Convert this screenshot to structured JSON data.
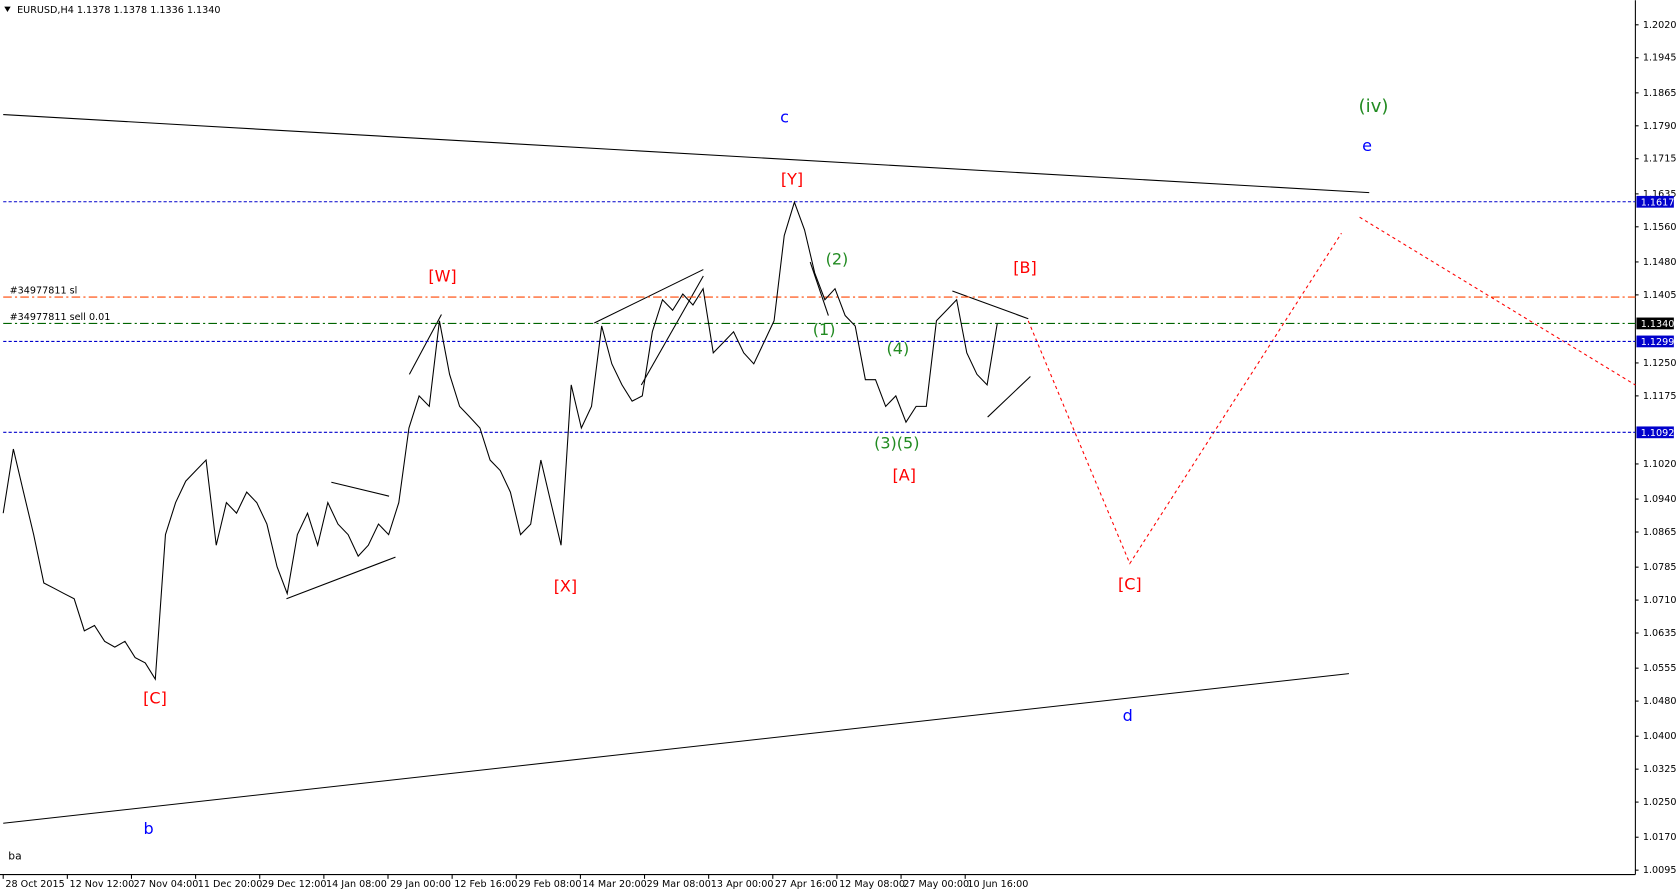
{
  "chart_data": {
    "type": "line",
    "title": "EURUSD,H4  1.1378 1.1378 1.1336 1.1340",
    "xtick_labels": [
      "28 Oct 2015",
      "12 Nov 12:00",
      "27 Nov 04:00",
      "11 Dec 20:00",
      "29 Dec 12:00",
      "14 Jan 08:00",
      "29 Jan 00:00",
      "12 Feb 16:00",
      "29 Feb 08:00",
      "14 Mar 20:00",
      "29 Mar 08:00",
      "13 Apr 00:00",
      "27 Apr 16:00",
      "12 May 08:00",
      "27 May 00:00",
      "10 Jun 16:00"
    ],
    "series": [
      {
        "color": "#000000",
        "values": [
          1.0908,
          1.1054,
          1.0956,
          1.0859,
          1.0749,
          1.0737,
          1.0725,
          1.0713,
          1.064,
          1.0652,
          1.0616,
          1.0603,
          1.0616,
          1.0579,
          1.0567,
          1.053,
          1.0859,
          1.0932,
          1.0981,
          1.1005,
          1.1029,
          1.0835,
          1.0932,
          1.0908,
          1.0956,
          1.0932,
          1.0883,
          1.0786,
          1.0725,
          1.0859,
          1.0908,
          1.0835,
          1.0932,
          1.0883,
          1.0859,
          1.081,
          1.0835,
          1.0883,
          1.0859,
          1.0932,
          1.1102,
          1.1175,
          1.1151,
          1.1346,
          1.1224,
          1.1151,
          1.1127,
          1.1102,
          1.1029,
          1.1005,
          1.0956,
          1.0859,
          1.0883,
          1.1029,
          1.0932,
          1.0835,
          1.12,
          1.1102,
          1.1151,
          1.1334,
          1.1248,
          1.12,
          1.1163,
          1.1175,
          1.1321,
          1.1394,
          1.137,
          1.1407,
          1.1382,
          1.1419,
          1.1273,
          1.1297,
          1.1321,
          1.1273,
          1.1248,
          1.1297,
          1.1346,
          1.154,
          1.1616,
          1.1553,
          1.1455,
          1.1394,
          1.1419,
          1.1358,
          1.1334,
          1.1212,
          1.1212,
          1.1151,
          1.1175,
          1.1115,
          1.1151,
          1.1151,
          1.1346,
          1.137,
          1.1394,
          1.1273,
          1.1224,
          1.12,
          1.134
        ]
      }
    ],
    "ylim": [
      1.0085,
      1.2076
    ],
    "yticks": [
      {
        "value": 1.0095,
        "label": "1.0095"
      },
      {
        "value": 1.017,
        "label": "1.0170"
      },
      {
        "value": 1.025,
        "label": "1.0250"
      },
      {
        "value": 1.0325,
        "label": "1.0325"
      },
      {
        "value": 1.04,
        "label": "1.0400"
      },
      {
        "value": 1.048,
        "label": "1.0480"
      },
      {
        "value": 1.0555,
        "label": "1.0555"
      },
      {
        "value": 1.0635,
        "label": "1.0635"
      },
      {
        "value": 1.071,
        "label": "1.0710"
      },
      {
        "value": 1.0785,
        "label": "1.0785"
      },
      {
        "value": 1.0865,
        "label": "1.0865"
      },
      {
        "value": 1.094,
        "label": "1.0940"
      },
      {
        "value": 1.102,
        "label": "1.1020"
      },
      {
        "value": 1.1175,
        "label": "1.1175"
      },
      {
        "value": 1.125,
        "label": "1.1250"
      },
      {
        "value": 1.1405,
        "label": "1.1405"
      },
      {
        "value": 1.148,
        "label": "1.1480"
      },
      {
        "value": 1.156,
        "label": "1.1560"
      },
      {
        "value": 1.1635,
        "label": "1.1635"
      },
      {
        "value": 1.1715,
        "label": "1.1715"
      },
      {
        "value": 1.179,
        "label": "1.1790"
      },
      {
        "value": 1.1865,
        "label": "1.1865"
      },
      {
        "value": 1.1945,
        "label": "1.1945"
      },
      {
        "value": 1.202,
        "label": "1.2020"
      }
    ],
    "hlines": [
      {
        "value": 1.1617,
        "label": "1.1617",
        "color": "#0000cc",
        "dash": "dotted",
        "box": "#0000cc"
      },
      {
        "value": 1.14,
        "color": "#ff4500",
        "dash": "dashdot",
        "text": "#34977811 sl"
      },
      {
        "value": 1.134,
        "label": "1.1340",
        "color": "#006400",
        "dash": "dashdot",
        "text": "#34977811 sell 0.01",
        "box": "#000000"
      },
      {
        "value": 1.1299,
        "label": "1.1299",
        "color": "#0000cc",
        "dash": "dotted",
        "box": "#0000cc"
      },
      {
        "value": 1.1092,
        "label": "1.1092",
        "color": "#0000cc",
        "dash": "dotted",
        "box": "#0000cc"
      }
    ],
    "annotations": [
      {
        "text": "c",
        "color": "#0000ff"
      },
      {
        "text": "[Y]",
        "color": "#ff0000"
      },
      {
        "text": "(iv)",
        "color": "#228b22"
      },
      {
        "text": "e",
        "color": "#0000ff"
      },
      {
        "text": "[W]",
        "color": "#ff0000"
      },
      {
        "text": "(2)",
        "color": "#228b22"
      },
      {
        "text": "[B]",
        "color": "#ff0000"
      },
      {
        "text": "(1)",
        "color": "#228b22"
      },
      {
        "text": "(4)",
        "color": "#228b22"
      },
      {
        "text": "(3)(5)",
        "color": "#228b22"
      },
      {
        "text": "[A]",
        "color": "#ff0000"
      },
      {
        "text": "[X]",
        "color": "#ff0000"
      },
      {
        "text": "[C]",
        "color": "#ff0000"
      },
      {
        "text": "[C]",
        "color": "#ff0000"
      },
      {
        "text": "d",
        "color": "#0000ff"
      },
      {
        "text": "b",
        "color": "#0000ff"
      },
      {
        "text": "ba",
        "color": "#000000"
      }
    ]
  }
}
